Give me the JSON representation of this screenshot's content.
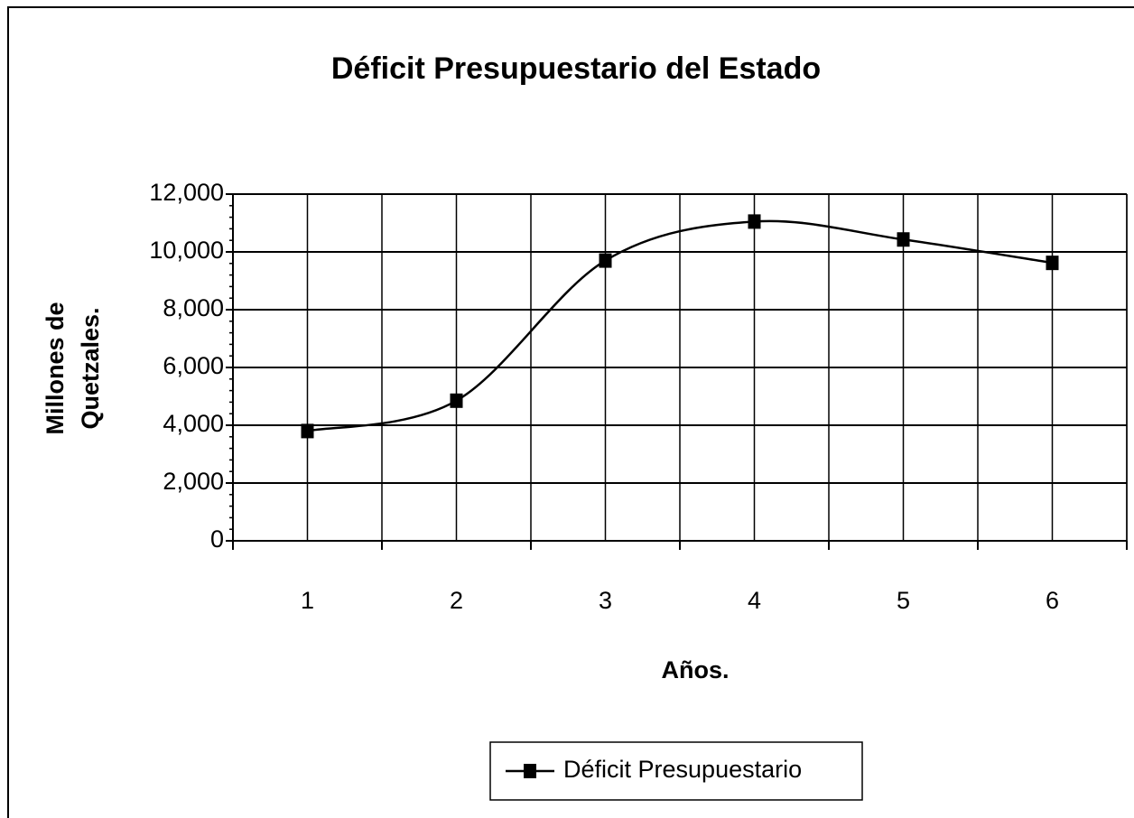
{
  "chart_data": {
    "type": "line",
    "title": "Déficit Presupuestario del Estado",
    "xlabel": "Años.",
    "ylabel": [
      "Millones de",
      "Quetzales."
    ],
    "categories": [
      "1",
      "2",
      "3",
      "4",
      "5",
      "6"
    ],
    "series": [
      {
        "name": "Déficit Presupuestario",
        "color": "#000000",
        "values": [
          3800,
          4850,
          9700,
          11050,
          10430,
          9620
        ]
      }
    ],
    "ylim": [
      0,
      12000
    ],
    "yticks": [
      0,
      {
        "value": 2000,
        "label": "2,000"
      },
      {
        "value": 4000,
        "label": "4,000"
      },
      {
        "value": 6000,
        "label": "6,000"
      },
      {
        "value": 8000,
        "label": "8,000"
      },
      {
        "value": 10000,
        "label": "10,000"
      },
      {
        "value": 12000,
        "label": "12,000"
      }
    ],
    "grid": true,
    "smooth": true,
    "legend": "bottom"
  }
}
